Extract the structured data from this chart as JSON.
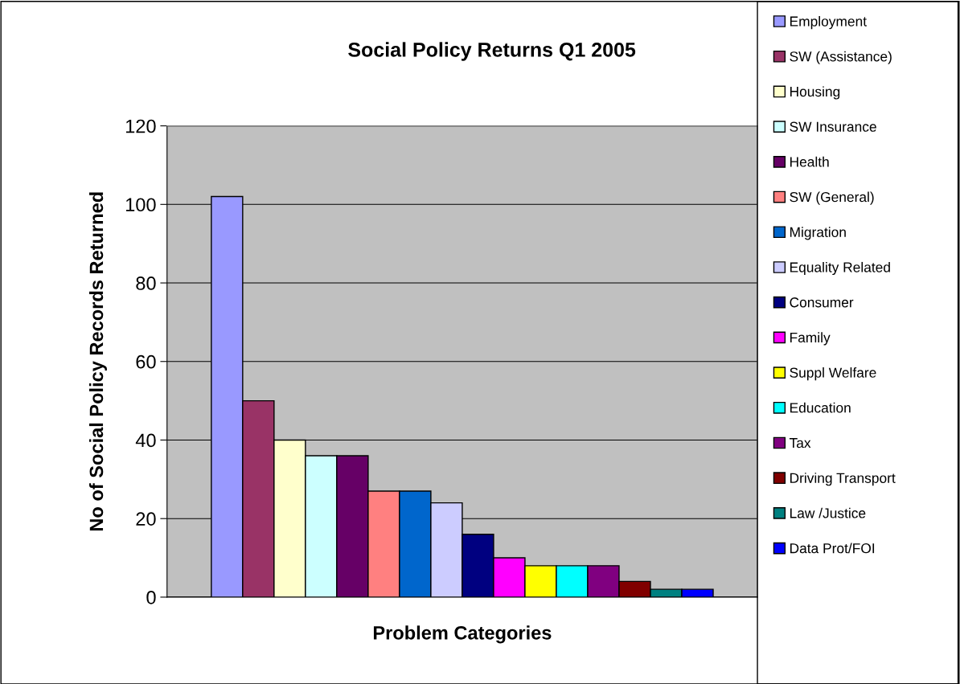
{
  "chart_data": {
    "type": "bar",
    "title": "Social Policy Returns Q1 2005",
    "xlabel": "Problem Categories",
    "ylabel": "No of Social Policy Records Returned",
    "categories": [
      null
    ],
    "series": [
      {
        "name": "Employment",
        "color": "#9999ff",
        "values": [
          102
        ]
      },
      {
        "name": "SW (Assistance)",
        "color": "#993366",
        "values": [
          50
        ]
      },
      {
        "name": "Housing",
        "color": "#ffffcc",
        "values": [
          40
        ]
      },
      {
        "name": "SW Insurance",
        "color": "#ccffff",
        "values": [
          36
        ]
      },
      {
        "name": "Health",
        "color": "#660066",
        "values": [
          36
        ]
      },
      {
        "name": "SW (General)",
        "color": "#ff8080",
        "values": [
          27
        ]
      },
      {
        "name": "Migration",
        "color": "#0066cc",
        "values": [
          27
        ]
      },
      {
        "name": "Equality Related",
        "color": "#ccccff",
        "values": [
          24
        ]
      },
      {
        "name": "Consumer",
        "color": "#000080",
        "values": [
          16
        ]
      },
      {
        "name": "Family",
        "color": "#ff00ff",
        "values": [
          10
        ]
      },
      {
        "name": "Suppl Welfare",
        "color": "#ffff00",
        "values": [
          8
        ]
      },
      {
        "name": "Education",
        "color": "#00ffff",
        "values": [
          8
        ]
      },
      {
        "name": "Tax",
        "color": "#800080",
        "values": [
          8
        ]
      },
      {
        "name": "Driving Transport",
        "color": "#800000",
        "values": [
          4
        ]
      },
      {
        "name": "Law /Justice",
        "color": "#008080",
        "values": [
          2
        ]
      },
      {
        "name": "Data Prot/FOI",
        "color": "#0000ff",
        "values": [
          2
        ]
      }
    ],
    "ylim": [
      0,
      120
    ],
    "yticks": [
      0,
      20,
      40,
      60,
      80,
      100,
      120
    ],
    "grid": "y",
    "legend": "right"
  }
}
